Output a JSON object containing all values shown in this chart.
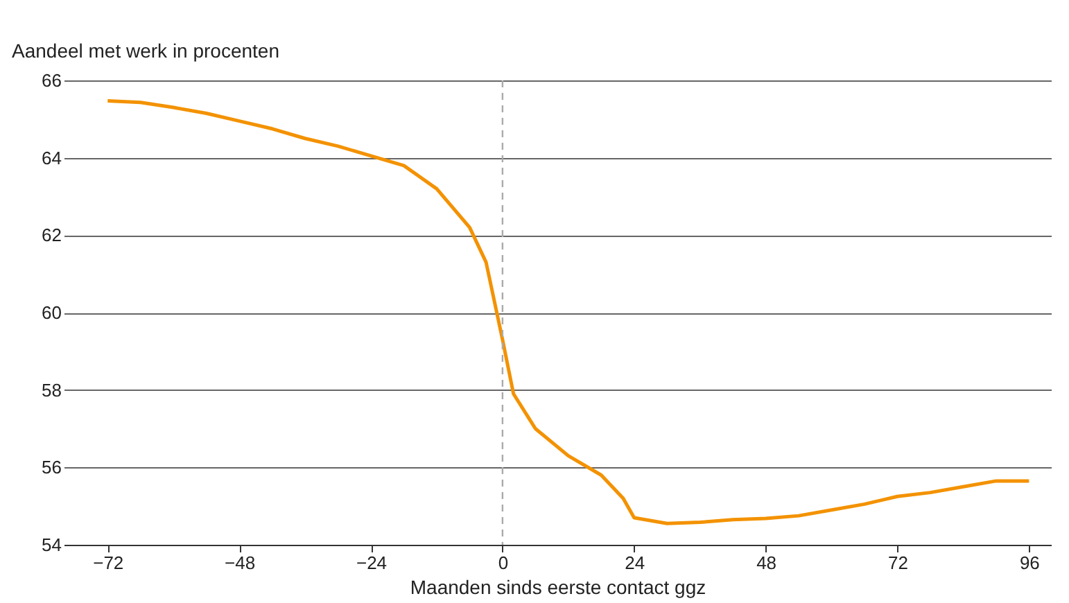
{
  "chart_data": {
    "type": "line",
    "xlabel": "Maanden sinds eerste contact ggz",
    "ylabel": "Aandeel met werk in procenten",
    "x": [
      -72,
      -66,
      -60,
      -54,
      -48,
      -42,
      -36,
      -30,
      -24,
      -18,
      -12,
      -6,
      -3,
      0,
      2,
      6,
      12,
      18,
      22,
      24,
      30,
      36,
      42,
      48,
      54,
      60,
      66,
      72,
      78,
      84,
      90,
      96
    ],
    "series": [
      {
        "color": "#f39200",
        "values": [
          65.47,
          65.43,
          65.3,
          65.15,
          64.95,
          64.75,
          64.5,
          64.3,
          64.05,
          63.8,
          63.2,
          62.2,
          61.3,
          59.3,
          57.9,
          57.0,
          56.3,
          55.8,
          55.2,
          54.7,
          54.55,
          54.58,
          54.65,
          54.68,
          54.75,
          54.9,
          55.05,
          55.25,
          55.35,
          55.5,
          55.65,
          55.65
        ]
      }
    ],
    "xlim": [
      -80,
      100
    ],
    "ylim": [
      54,
      66
    ],
    "xticks": [
      {
        "value": -72,
        "label": "−72"
      },
      {
        "value": -48,
        "label": "−48"
      },
      {
        "value": -24,
        "label": "−24"
      },
      0,
      24,
      48,
      72,
      96
    ],
    "yticks": [
      54,
      56,
      58,
      60,
      62,
      64,
      66
    ],
    "grid": "y",
    "marker": "none",
    "line_style": "solid",
    "ref_lines": [
      {
        "axis": "x",
        "value": 0,
        "color": "#aaaaaa",
        "line_style": "dashed"
      }
    ]
  }
}
